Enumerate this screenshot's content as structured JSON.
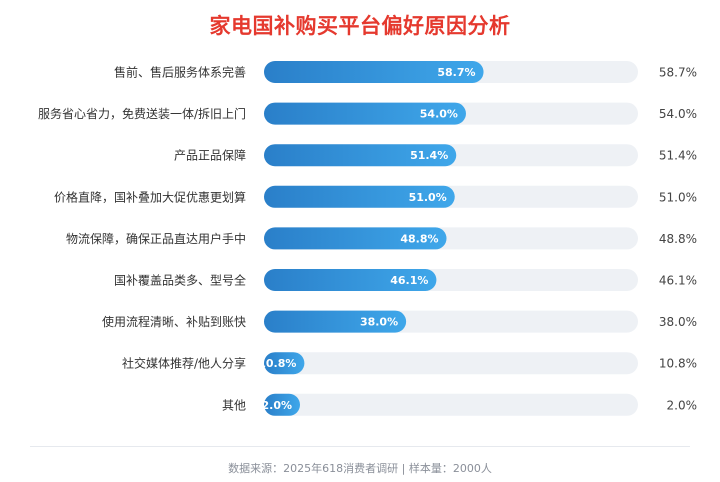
{
  "chart_data": {
    "type": "bar",
    "orientation": "horizontal",
    "title": "家电国补购买平台偏好原因分析",
    "categories": [
      "售前、售后服务体系完善",
      "服务省心省力，免费送装一体/拆旧上门",
      "产品正品保障",
      "价格直降，国补叠加大促优惠更划算",
      "物流保障，确保正品直达用户手中",
      "国补覆盖品类多、型号全",
      "使用流程清晰、补贴到账快",
      "社交媒体推荐/他人分享",
      "其他"
    ],
    "values": [
      58.7,
      54.0,
      51.4,
      51.0,
      48.8,
      46.1,
      38.0,
      10.8,
      2.0
    ],
    "value_labels": [
      "58.7%",
      "54.0%",
      "51.4%",
      "51.0%",
      "48.8%",
      "46.1%",
      "38.0%",
      "10.8%",
      "2.0%"
    ],
    "xlim": [
      0,
      100
    ],
    "grid": false,
    "legend": "none",
    "colors": {
      "bar_start": "#2a7fc9",
      "bar_end": "#3fa7ea",
      "track": "#eef1f5",
      "title": "#e5392e"
    }
  },
  "footer": "数据来源：2025年618消费者调研 | 样本量：2000人"
}
